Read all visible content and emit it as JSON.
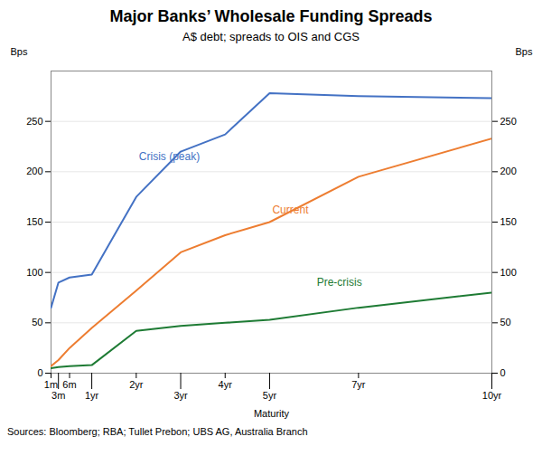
{
  "chart_data": {
    "type": "line",
    "title": "Major Banks’ Wholesale Funding Spreads",
    "subtitle": "A$ debt; spreads to OIS and CGS",
    "xlabel": "Maturity",
    "ylabel": "Bps",
    "y2label": "Bps",
    "source": "Sources: Bloomberg; RBA; Tullet Prebon; UBS AG, Australia Branch",
    "x": [
      1,
      3,
      6,
      12,
      24,
      36,
      48,
      60,
      84,
      120
    ],
    "xlim": [
      1,
      120
    ],
    "xticks": [
      {
        "value": 1,
        "label": "1m"
      },
      {
        "value": 3,
        "label": "3m"
      },
      {
        "value": 6,
        "label": "6m"
      },
      {
        "value": 12,
        "label": "1yr"
      },
      {
        "value": 24,
        "label": "2yr"
      },
      {
        "value": 36,
        "label": "3yr"
      },
      {
        "value": 48,
        "label": "4yr"
      },
      {
        "value": 60,
        "label": "5yr"
      },
      {
        "value": 84,
        "label": "7yr"
      },
      {
        "value": 120,
        "label": "10yr"
      }
    ],
    "ylim": [
      0,
      300
    ],
    "yticks": [
      0,
      50,
      100,
      150,
      200,
      250
    ],
    "y2lim": [
      0,
      300
    ],
    "y2ticks": [
      0,
      50,
      100,
      150,
      200,
      250
    ],
    "grid": true,
    "series": [
      {
        "name": "Crisis (peak)",
        "color": "#4472c4",
        "values": [
          65,
          90,
          95,
          98,
          175,
          220,
          237,
          278,
          275,
          273
        ],
        "label_x": 24,
        "label_y": 215
      },
      {
        "name": "Current",
        "color": "#ed7d31",
        "values": [
          7,
          13,
          25,
          45,
          82,
          120,
          137,
          150,
          195,
          233
        ],
        "label_x": 60,
        "label_y": 162
      },
      {
        "name": "Pre-crisis",
        "color": "#1e7b34",
        "values": [
          5,
          6,
          7,
          8,
          42,
          47,
          50,
          53,
          65,
          80
        ],
        "label_x": 72,
        "label_y": 90
      }
    ]
  }
}
